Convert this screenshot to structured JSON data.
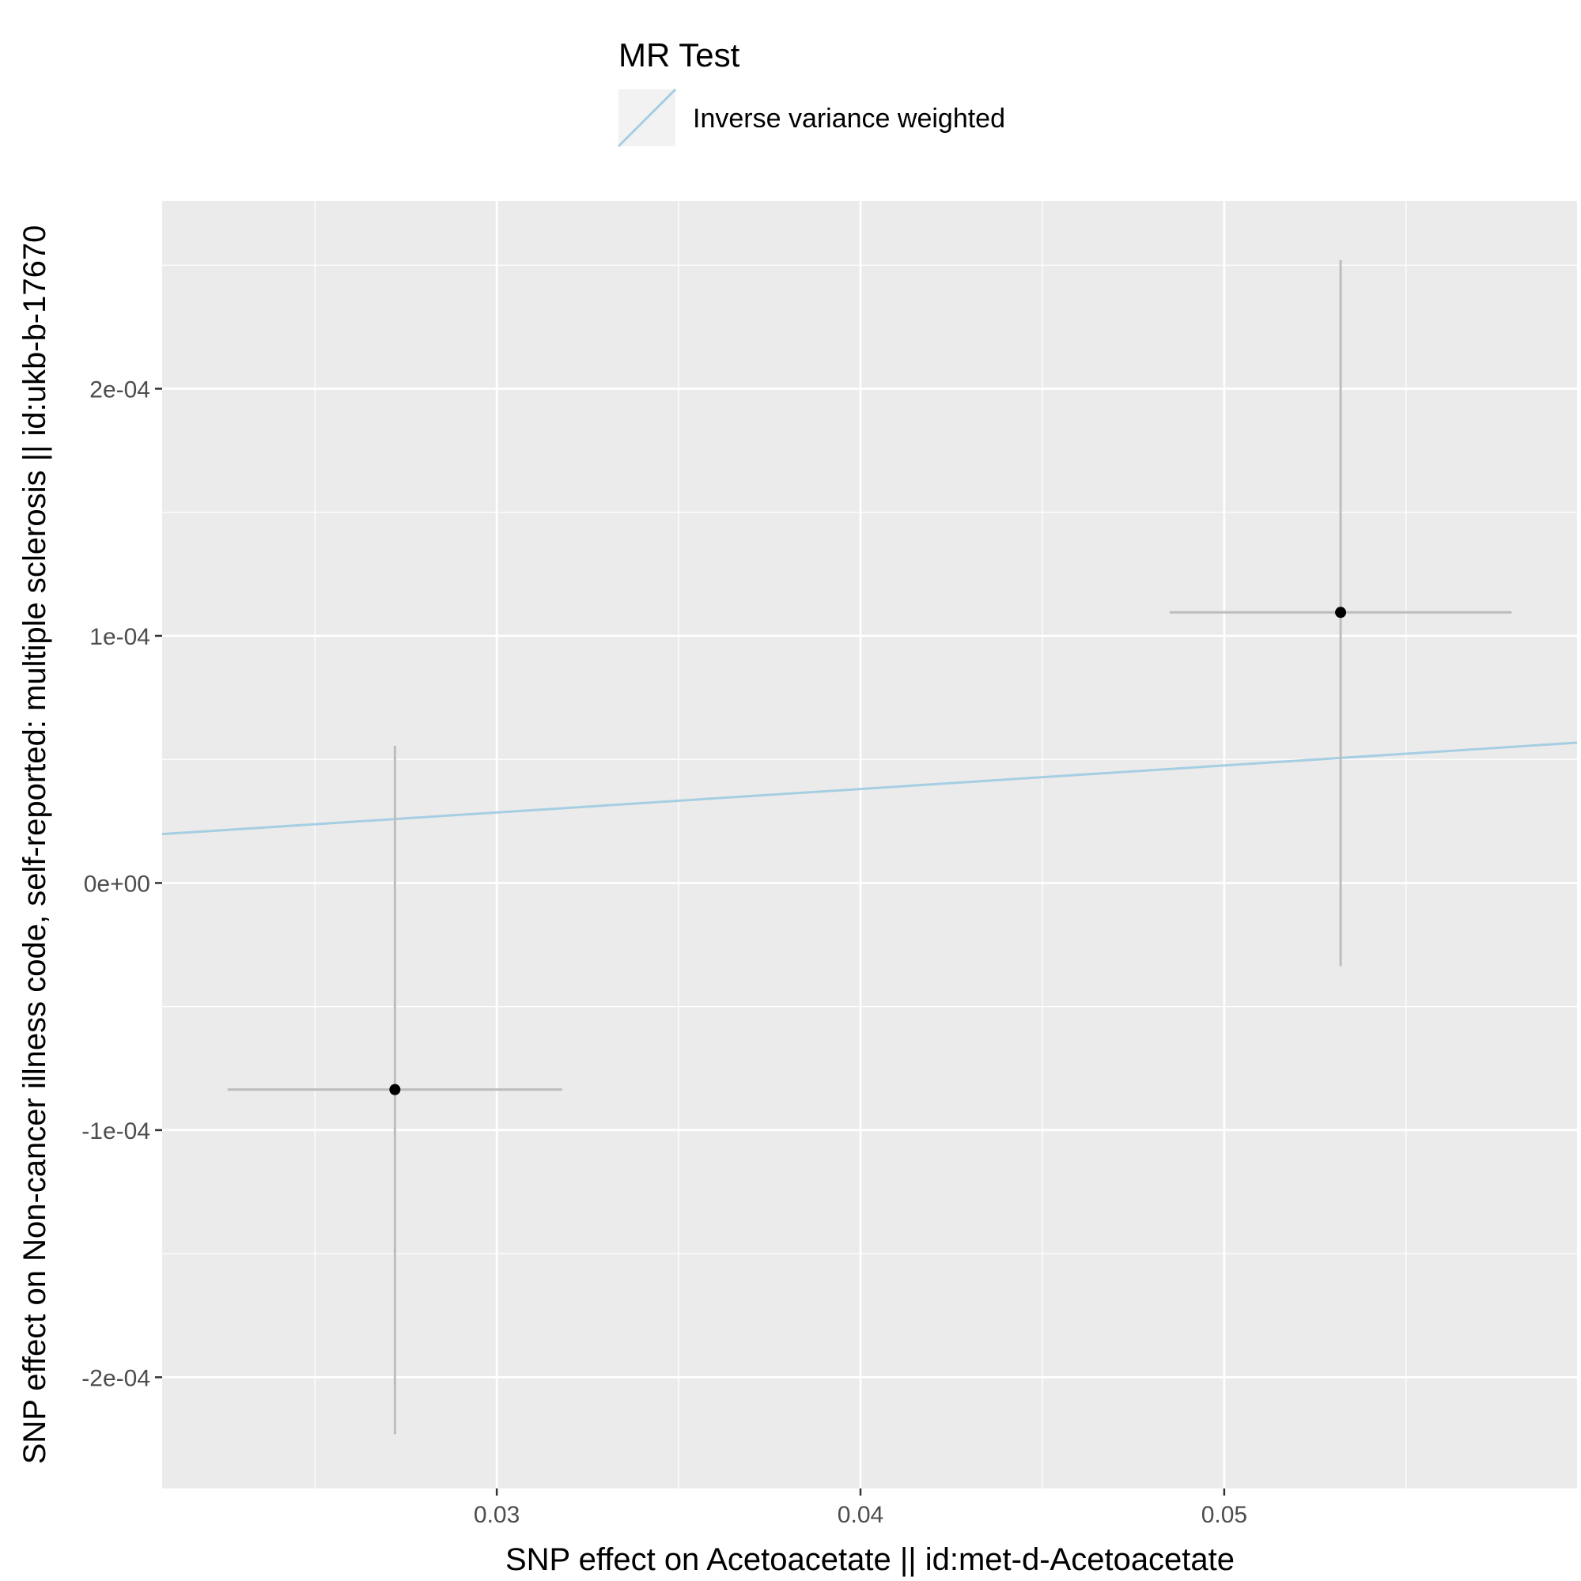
{
  "chart_data": {
    "type": "scatter",
    "title": "",
    "xlabel": "SNP effect on Acetoacetate || id:met-d-Acetoacetate",
    "ylabel": "SNP effect on Non-cancer illness code, self-reported: multiple sclerosis || id:ukb-b-17670",
    "xlim": [
      0.0208,
      0.0597
    ],
    "ylim": [
      -0.000245,
      0.000276
    ],
    "x_ticks": [
      0.03,
      0.04,
      0.05
    ],
    "x_tick_labels": [
      "0.03",
      "0.04",
      "0.05"
    ],
    "y_ticks": [
      -0.0002,
      -0.0001,
      0.0,
      0.0001,
      0.0002
    ],
    "y_tick_labels": [
      "-2e-04",
      "-1e-04",
      "0e+00",
      "1e-04",
      "2e-04"
    ],
    "grid": true,
    "points": [
      {
        "x": 0.0272,
        "y": -8.36e-05,
        "x_low": 0.0226,
        "x_high": 0.0318,
        "y_low": -0.000223,
        "y_high": 5.55e-05
      },
      {
        "x": 0.0532,
        "y": 0.0001095,
        "x_low": 0.0485,
        "x_high": 0.0579,
        "y_low": -3.37e-05,
        "y_high": 0.000252
      }
    ],
    "lines": [
      {
        "name": "Inverse variance weighted",
        "slope": 0.000951,
        "intercept": 0.0,
        "color": "#a6cee3"
      }
    ],
    "legend": {
      "title": "MR Test",
      "position": "top",
      "entries": [
        "Inverse variance weighted"
      ]
    },
    "colors": {
      "panel_background": "#ebebeb",
      "grid": "#ffffff",
      "point": "#000000",
      "errorbar": "#bdbdbd",
      "line": "#a6cee3"
    }
  }
}
